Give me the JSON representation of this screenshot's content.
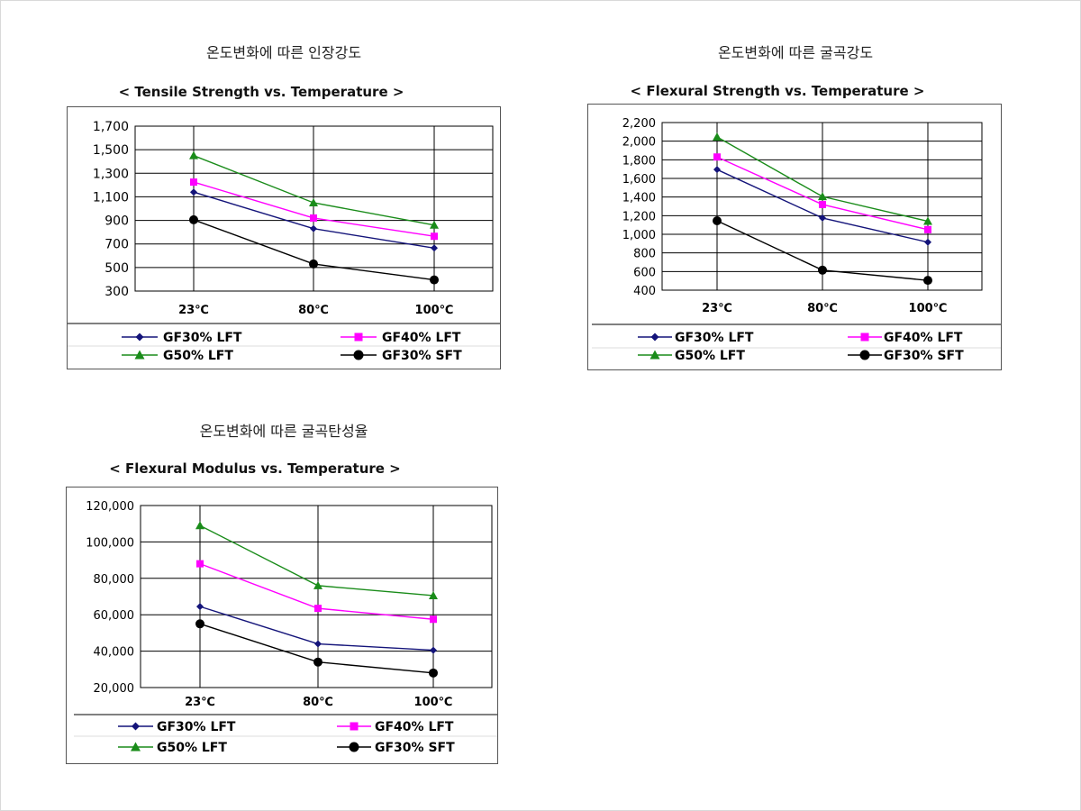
{
  "sections": [
    {
      "heading": "온도변화에 따른 인장강도"
    },
    {
      "heading": "온도변화에 따른 굴곡강도"
    },
    {
      "heading": "온도변화에 따른 굴곡탄성율"
    }
  ],
  "colors": {
    "GF30% LFT": "#14147a",
    "GF40% LFT": "#ff00ff",
    "G50% LFT": "#1a8c1a",
    "GF30% SFT": "#000000"
  },
  "chart_data": [
    {
      "type": "line",
      "title": "< Tensile Strength vs. Temperature >",
      "categories": [
        "23℃",
        "80℃",
        "100℃"
      ],
      "ylim": [
        300,
        1700
      ],
      "yticks": [
        "1,700",
        "1,500",
        "1,300",
        "1,100",
        "900",
        "700",
        "500",
        "300"
      ],
      "grid": true,
      "legend": "bottom",
      "series": [
        {
          "name": "GF30% LFT",
          "marker": "diamond",
          "values": [
            1140,
            830,
            665
          ]
        },
        {
          "name": "GF40% LFT",
          "marker": "square",
          "values": [
            1225,
            920,
            765
          ]
        },
        {
          "name": "G50% LFT",
          "marker": "triangle",
          "values": [
            1450,
            1050,
            860
          ]
        },
        {
          "name": "GF30% SFT",
          "marker": "circle",
          "values": [
            905,
            530,
            395
          ]
        }
      ]
    },
    {
      "type": "line",
      "title": "< Flexural Strength vs. Temperature >",
      "categories": [
        "23℃",
        "80℃",
        "100℃"
      ],
      "ylim": [
        400,
        2200
      ],
      "yticks": [
        "2,200",
        "2,000",
        "1,800",
        "1,600",
        "1,400",
        "1,200",
        "1,000",
        "800",
        "600",
        "400"
      ],
      "grid": true,
      "legend": "bottom",
      "series": [
        {
          "name": "GF30% LFT",
          "marker": "diamond",
          "values": [
            1695,
            1175,
            915
          ]
        },
        {
          "name": "GF40% LFT",
          "marker": "square",
          "values": [
            1830,
            1320,
            1050
          ]
        },
        {
          "name": "G50% LFT",
          "marker": "triangle",
          "values": [
            2045,
            1405,
            1140
          ]
        },
        {
          "name": "GF30% SFT",
          "marker": "circle",
          "values": [
            1145,
            615,
            505
          ]
        }
      ]
    },
    {
      "type": "line",
      "title": "< Flexural Modulus vs. Temperature >",
      "categories": [
        "23℃",
        "80℃",
        "100℃"
      ],
      "ylim": [
        20000,
        120000
      ],
      "yticks": [
        "120,000",
        "100,000",
        "80,000",
        "60,000",
        "40,000",
        "20,000"
      ],
      "grid": true,
      "legend": "bottom",
      "series": [
        {
          "name": "GF30% LFT",
          "marker": "diamond",
          "values": [
            64500,
            44000,
            40500
          ]
        },
        {
          "name": "GF40% LFT",
          "marker": "square",
          "values": [
            88000,
            63500,
            57500
          ]
        },
        {
          "name": "G50% LFT",
          "marker": "triangle",
          "values": [
            109000,
            76000,
            70500
          ]
        },
        {
          "name": "GF30% SFT",
          "marker": "circle",
          "values": [
            55000,
            34000,
            28000
          ]
        }
      ]
    }
  ]
}
